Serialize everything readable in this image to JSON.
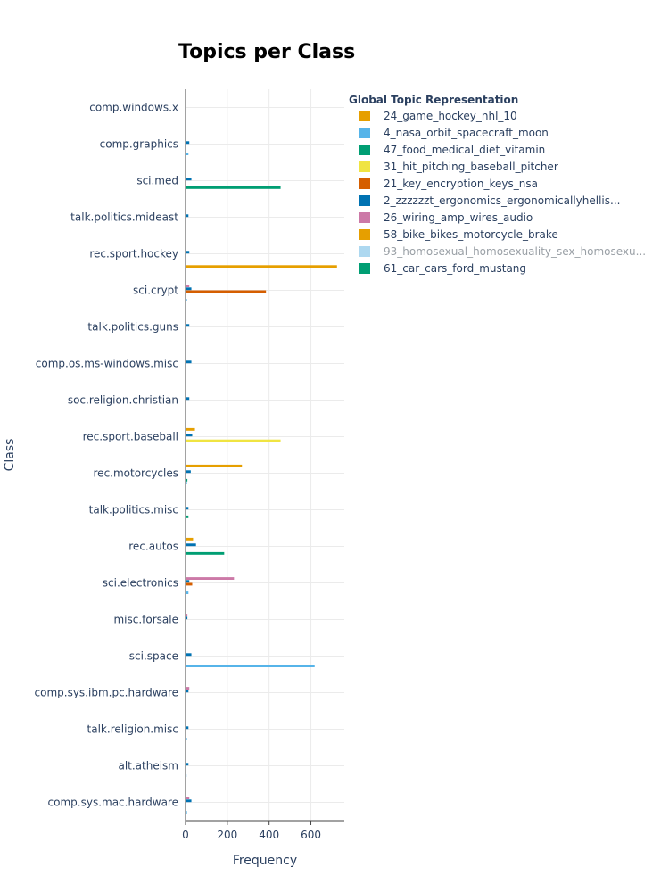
{
  "chart_data": {
    "type": "bar",
    "orientation": "horizontal",
    "title": "Topics per Class",
    "xlabel": "Frequency",
    "ylabel": "Class",
    "xlim": [
      0,
      760
    ],
    "xticks": [
      0,
      200,
      400,
      600
    ],
    "legend_title": "Global Topic Representation",
    "legend_position": "right",
    "categories": [
      "comp.windows.x",
      "comp.graphics",
      "sci.med",
      "talk.politics.mideast",
      "rec.sport.hockey",
      "sci.crypt",
      "talk.politics.guns",
      "comp.os.ms-windows.misc",
      "soc.religion.christian",
      "rec.sport.baseball",
      "rec.motorcycles",
      "talk.politics.misc",
      "rec.autos",
      "sci.electronics",
      "misc.forsale",
      "sci.space",
      "comp.sys.ibm.pc.hardware",
      "talk.religion.misc",
      "alt.atheism",
      "comp.sys.mac.hardware"
    ],
    "series": [
      {
        "name": "24_game_hockey_nhl_10",
        "color": "#E69F00",
        "muted": false,
        "values": [
          0,
          0,
          0,
          0,
          725,
          0,
          0,
          0,
          0,
          0,
          0,
          0,
          0,
          0,
          0,
          0,
          0,
          0,
          0,
          0
        ]
      },
      {
        "name": "4_nasa_orbit_spacecraft_moon",
        "color": "#56B4E9",
        "muted": false,
        "values": [
          2,
          14,
          4,
          0,
          0,
          7,
          2,
          2,
          2,
          2,
          7,
          2,
          0,
          14,
          2,
          618,
          2,
          7,
          5,
          7
        ]
      },
      {
        "name": "47_food_medical_diet_vitamin",
        "color": "#009E73",
        "muted": false,
        "values": [
          0,
          0,
          455,
          0,
          0,
          0,
          0,
          0,
          0,
          0,
          9,
          14,
          185,
          0,
          0,
          2,
          0,
          0,
          0,
          0
        ]
      },
      {
        "name": "31_hit_pitching_baseball_pitcher",
        "color": "#F0E442",
        "muted": false,
        "values": [
          0,
          0,
          0,
          0,
          0,
          0,
          0,
          0,
          0,
          455,
          0,
          0,
          0,
          0,
          0,
          0,
          0,
          0,
          0,
          0
        ]
      },
      {
        "name": "21_key_encryption_keys_nsa",
        "color": "#D55E00",
        "muted": false,
        "values": [
          0,
          0,
          0,
          0,
          0,
          385,
          0,
          0,
          0,
          0,
          0,
          0,
          0,
          32,
          0,
          0,
          0,
          0,
          0,
          0
        ]
      },
      {
        "name": "2_zzzzzzt_ergonomics_ergonomicallyhellis...",
        "color": "#0072B2",
        "muted": false,
        "values": [
          3,
          18,
          28,
          14,
          18,
          28,
          18,
          28,
          18,
          32,
          25,
          14,
          50,
          18,
          9,
          28,
          14,
          14,
          14,
          28
        ]
      },
      {
        "name": "26_wiring_amp_wires_audio",
        "color": "#CC79A7",
        "muted": false,
        "values": [
          0,
          0,
          0,
          0,
          0,
          18,
          0,
          0,
          0,
          0,
          0,
          0,
          0,
          232,
          9,
          0,
          18,
          0,
          0,
          18
        ]
      },
      {
        "name": "58_bike_bikes_motorcycle_brake",
        "color": "#E69F00",
        "muted": false,
        "values": [
          0,
          0,
          0,
          0,
          0,
          0,
          0,
          0,
          0,
          45,
          270,
          0,
          36,
          0,
          0,
          0,
          0,
          0,
          0,
          0
        ]
      },
      {
        "name": "93_homosexual_homosexuality_sex_homosexu...",
        "color": "#ADD8F0",
        "muted": true,
        "values": [
          0,
          0,
          0,
          0,
          0,
          0,
          0,
          0,
          0,
          0,
          0,
          0,
          0,
          0,
          0,
          0,
          0,
          0,
          0,
          0
        ]
      },
      {
        "name": "61_car_cars_ford_mustang",
        "color": "#009E73",
        "muted": false,
        "values": [
          0,
          0,
          0,
          0,
          0,
          0,
          0,
          0,
          0,
          0,
          0,
          0,
          0,
          0,
          0,
          0,
          0,
          0,
          0,
          0
        ]
      }
    ],
    "grid": true
  }
}
